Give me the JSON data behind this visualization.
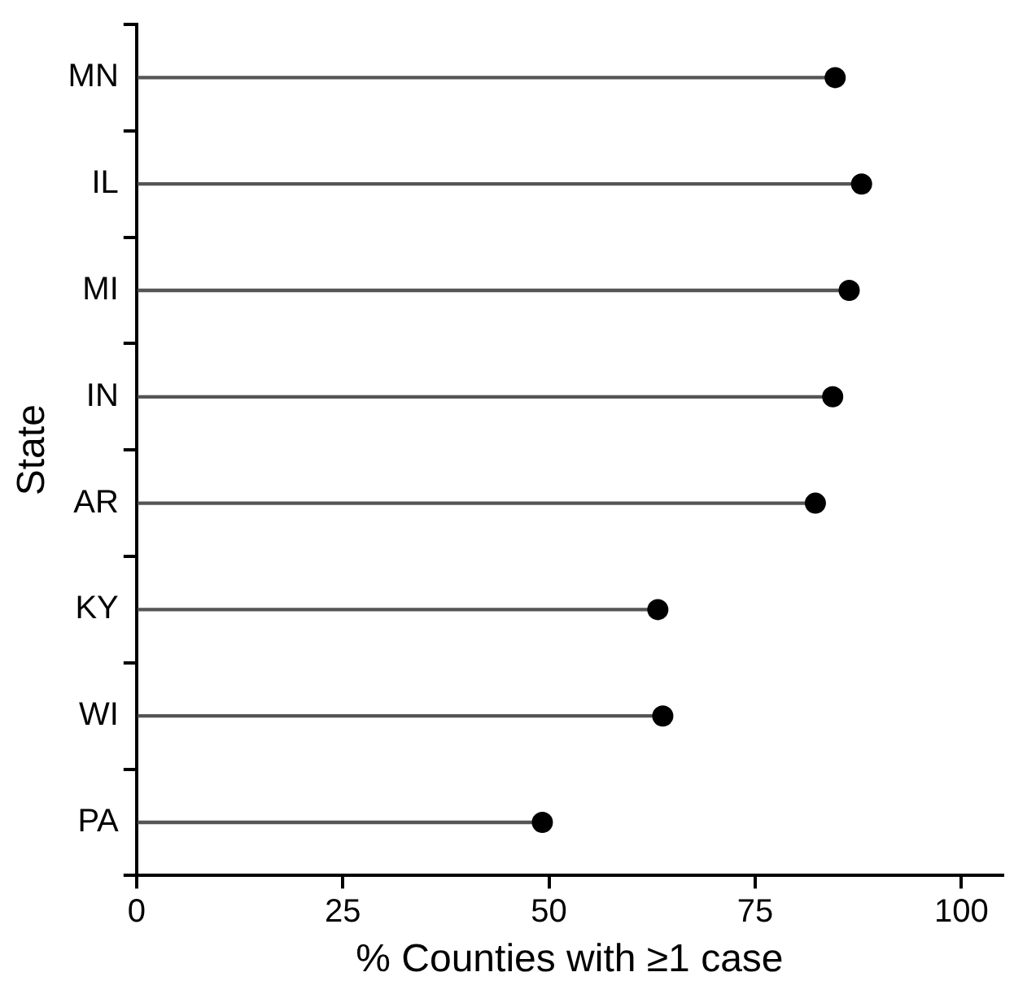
{
  "chart_data": {
    "type": "lollipop",
    "orientation": "horizontal",
    "xlabel": "% Counties with ≥1 case",
    "ylabel": "State",
    "categories": [
      "MN",
      "IL",
      "MI",
      "IN",
      "AR",
      "KY",
      "WI",
      "PA"
    ],
    "values": [
      84.7,
      87.9,
      86.4,
      84.4,
      82.3,
      63.2,
      63.8,
      49.2
    ],
    "color": "#000000",
    "marker": "circle",
    "xlim": [
      0,
      105
    ],
    "xticks": [
      0,
      25,
      50,
      75,
      100
    ],
    "grid": false,
    "legend": false
  }
}
